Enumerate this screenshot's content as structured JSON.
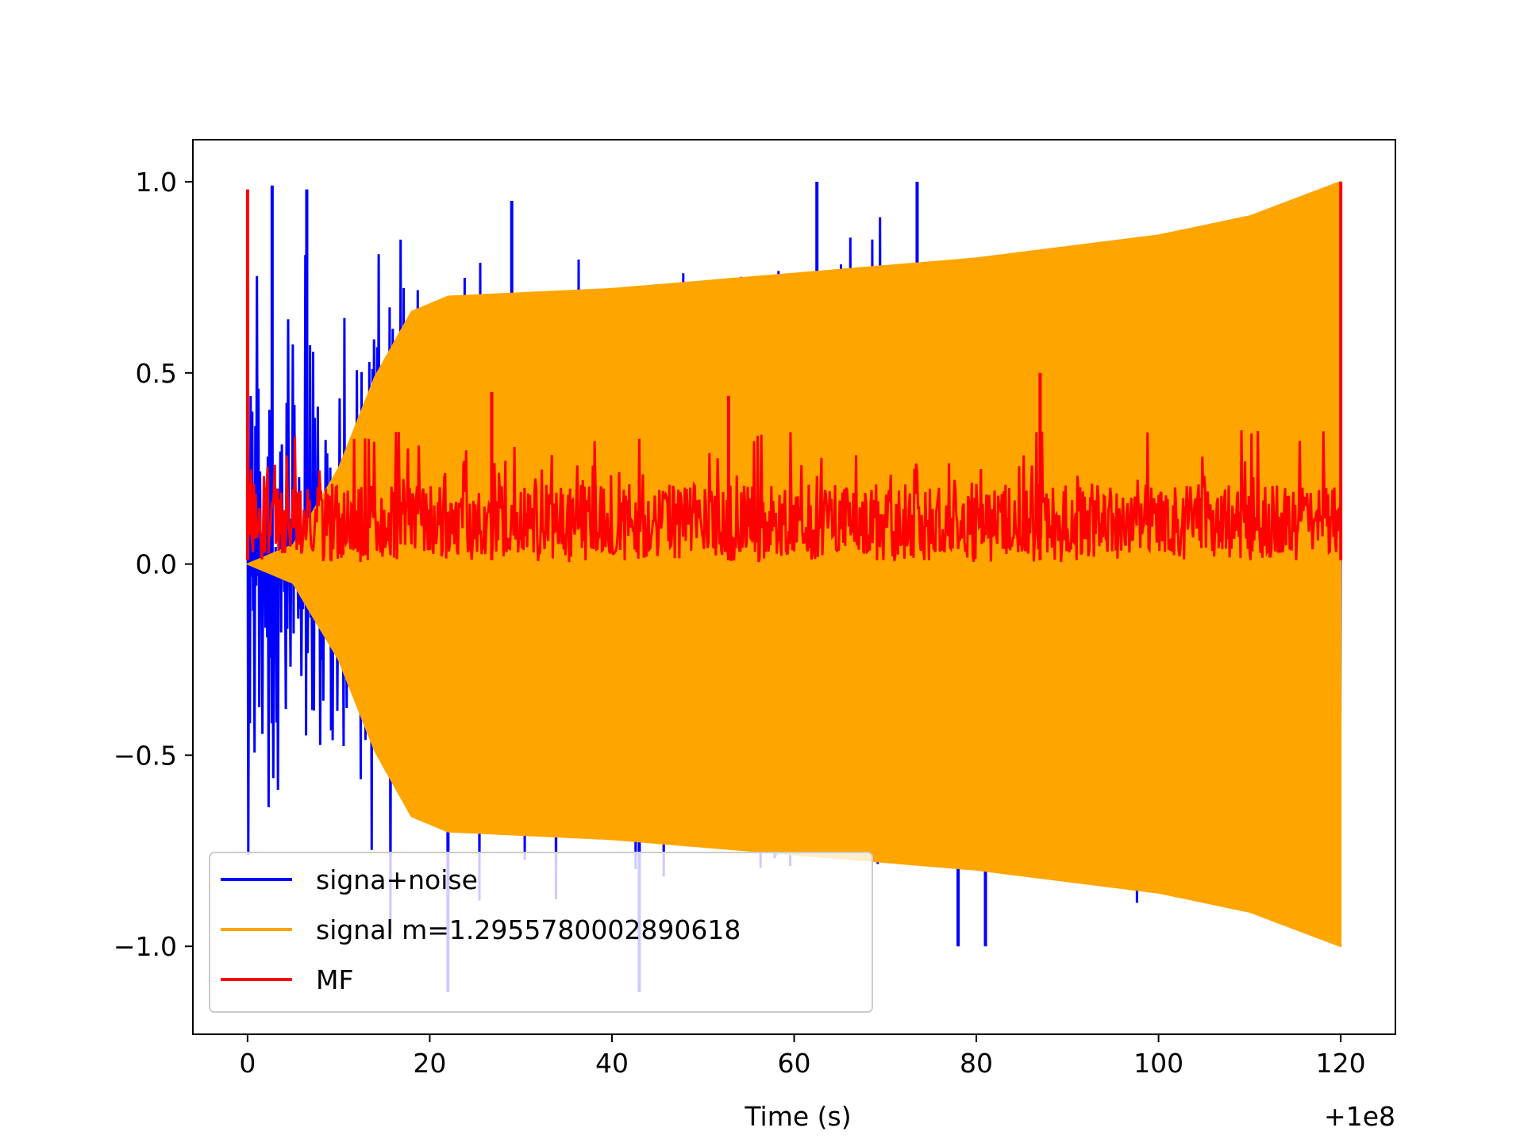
{
  "chart_data": {
    "type": "line",
    "title": "",
    "xlabel": "Time (s)",
    "ylabel": "",
    "x_offset_label": "+1e8",
    "xlim": [
      -6,
      126
    ],
    "ylim": [
      -1.23,
      1.11
    ],
    "x_ticks": [
      0,
      20,
      40,
      60,
      80,
      100,
      120
    ],
    "x_tick_labels": [
      "0",
      "20",
      "40",
      "60",
      "80",
      "100",
      "120"
    ],
    "y_ticks": [
      -1.0,
      -0.5,
      0.0,
      0.5,
      1.0
    ],
    "y_tick_labels": [
      "−1.0",
      "−0.5",
      "0.0",
      "0.5",
      "1.0"
    ],
    "grid": false,
    "legend_position": "lower-left",
    "series": [
      {
        "name": "signa+noise",
        "color": "#0000ff",
        "x_range": [
          0,
          120
        ],
        "approx_range": [
          -1.12,
          1.0
        ],
        "notable_peaks": [
          {
            "x": 2.7,
            "y": 0.99
          },
          {
            "x": 6.5,
            "y": 0.98
          },
          {
            "x": 29.0,
            "y": 0.95
          },
          {
            "x": 62.5,
            "y": 1.0
          },
          {
            "x": 73.5,
            "y": 1.0
          },
          {
            "x": 78.0,
            "y": -1.0
          },
          {
            "x": 81.0,
            "y": -1.0
          },
          {
            "x": 43.0,
            "y": -1.12
          },
          {
            "x": 22.0,
            "y": -1.12
          }
        ]
      },
      {
        "name": "signal m=1.2955780002890618",
        "color": "#ffa500",
        "x_range": [
          0,
          120
        ],
        "envelope": {
          "x": [
            0,
            5,
            10,
            14,
            18,
            22,
            40,
            60,
            80,
            100,
            110,
            120
          ],
          "amplitude": [
            0.0,
            0.05,
            0.25,
            0.49,
            0.66,
            0.7,
            0.72,
            0.76,
            0.8,
            0.86,
            0.91,
            1.0
          ]
        }
      },
      {
        "name": "MF",
        "color": "#ff0000",
        "x_range": [
          0,
          120
        ],
        "approx_baseline": 0.12,
        "approx_range": [
          0.0,
          1.0
        ],
        "notable_peaks": [
          {
            "x": 0.0,
            "y": 0.98
          },
          {
            "x": 26.8,
            "y": 0.45
          },
          {
            "x": 52.8,
            "y": 0.44
          },
          {
            "x": 87.0,
            "y": 0.5
          },
          {
            "x": 120.0,
            "y": 1.0
          }
        ]
      }
    ]
  }
}
